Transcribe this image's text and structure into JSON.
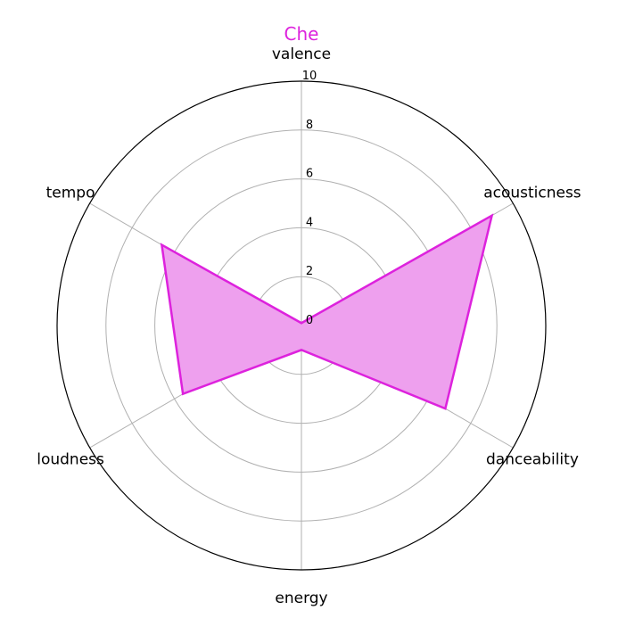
{
  "chart_data": {
    "type": "radar",
    "title": "Che",
    "axes": [
      "valence",
      "acousticness",
      "danceability",
      "energy",
      "loudness",
      "tempo"
    ],
    "series": [
      {
        "values": [
          0.1,
          9.0,
          6.8,
          1.0,
          5.6,
          6.6
        ]
      }
    ],
    "rlim": [
      0,
      10
    ],
    "rticks": [
      "0",
      "2",
      "4",
      "6",
      "8",
      "10"
    ],
    "grid": true,
    "colors": {
      "series": "#dd22dd",
      "fill": "#eea0ee",
      "grid": "#b0b0b0",
      "outline": "#000000",
      "title": "#dd22dd"
    }
  }
}
